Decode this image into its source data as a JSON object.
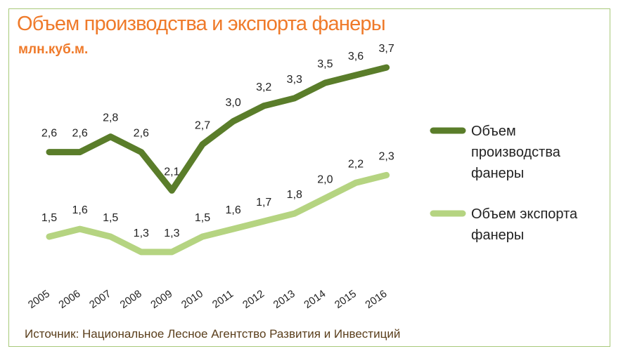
{
  "title": "Объем производства и экспорта фанеры",
  "subtitle": "млн.куб.м.",
  "source": "Источник: Национальное Лесное Агентство Развития и Инвестиций",
  "chart_data": {
    "type": "line",
    "x": [
      "2005",
      "2006",
      "2007",
      "2008",
      "2009",
      "2010",
      "2011",
      "2012",
      "2013",
      "2014",
      "2015",
      "2016"
    ],
    "series": [
      {
        "name": "Объем производства фанеры",
        "legend_lines": [
          "Объем",
          "производства",
          "фанеры"
        ],
        "color": "#5a7d2a",
        "values": [
          2.6,
          2.6,
          2.8,
          2.6,
          2.1,
          2.7,
          3.0,
          3.2,
          3.3,
          3.5,
          3.6,
          3.7
        ],
        "labels": [
          "2,6",
          "2,6",
          "2,8",
          "2,6",
          "2,1",
          "2,7",
          "3,0",
          "3,2",
          "3,3",
          "3,5",
          "3,6",
          "3,7"
        ]
      },
      {
        "name": "Объем экспорта фанеры",
        "legend_lines": [
          "Объем экспорта",
          "фанеры"
        ],
        "color": "#b5d481",
        "values": [
          1.5,
          1.6,
          1.5,
          1.3,
          1.3,
          1.5,
          1.6,
          1.7,
          1.8,
          2.0,
          2.2,
          2.3
        ],
        "labels": [
          "1,5",
          "1,6",
          "1,5",
          "1,3",
          "1,3",
          "1,5",
          "1,6",
          "1,7",
          "1,8",
          "2,0",
          "2,2",
          "2,3"
        ]
      }
    ],
    "grid": false,
    "legend": "right"
  }
}
